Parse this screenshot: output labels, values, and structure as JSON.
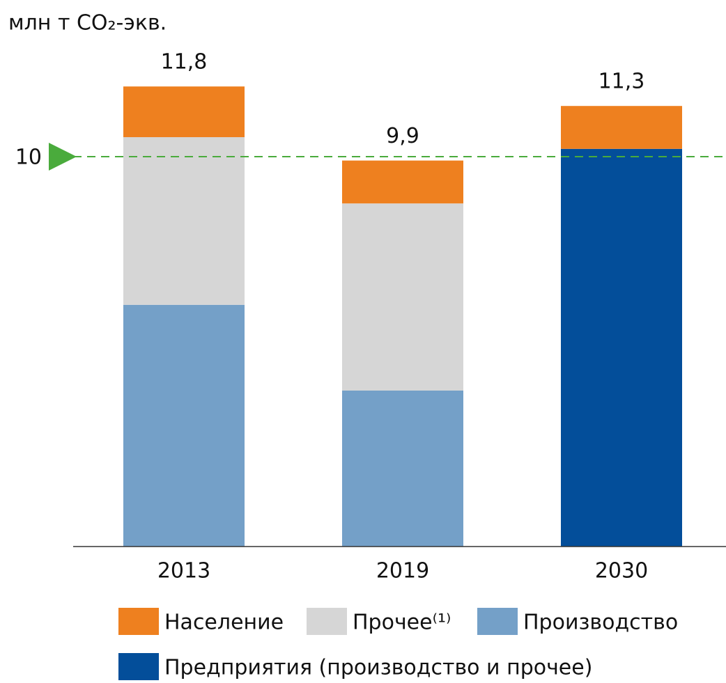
{
  "chart_data": {
    "type": "stacked_bar",
    "unit_label": "млн т CO₂-экв.",
    "categories": [
      "2013",
      "2019",
      "2030"
    ],
    "series": [
      {
        "name": "Население",
        "color": "#ee801f",
        "values": [
          1.3,
          1.1,
          1.1
        ]
      },
      {
        "name": "Прочее⁽¹⁾",
        "color": "#d6d6d6",
        "values": [
          4.3,
          4.8,
          null
        ]
      },
      {
        "name": "Производство",
        "color": "#74a0c8",
        "values": [
          6.2,
          4.0,
          null
        ]
      },
      {
        "name": "Предприятия (производство и прочее)",
        "color": "#034e9a",
        "values": [
          null,
          null,
          10.2
        ]
      }
    ],
    "totals": [
      11.8,
      9.9,
      11.3
    ],
    "total_labels": [
      "11,8",
      "9,9",
      "11,3"
    ],
    "target_line": 10,
    "target_color": "#4aab3c",
    "ylim": [
      0,
      12
    ]
  }
}
